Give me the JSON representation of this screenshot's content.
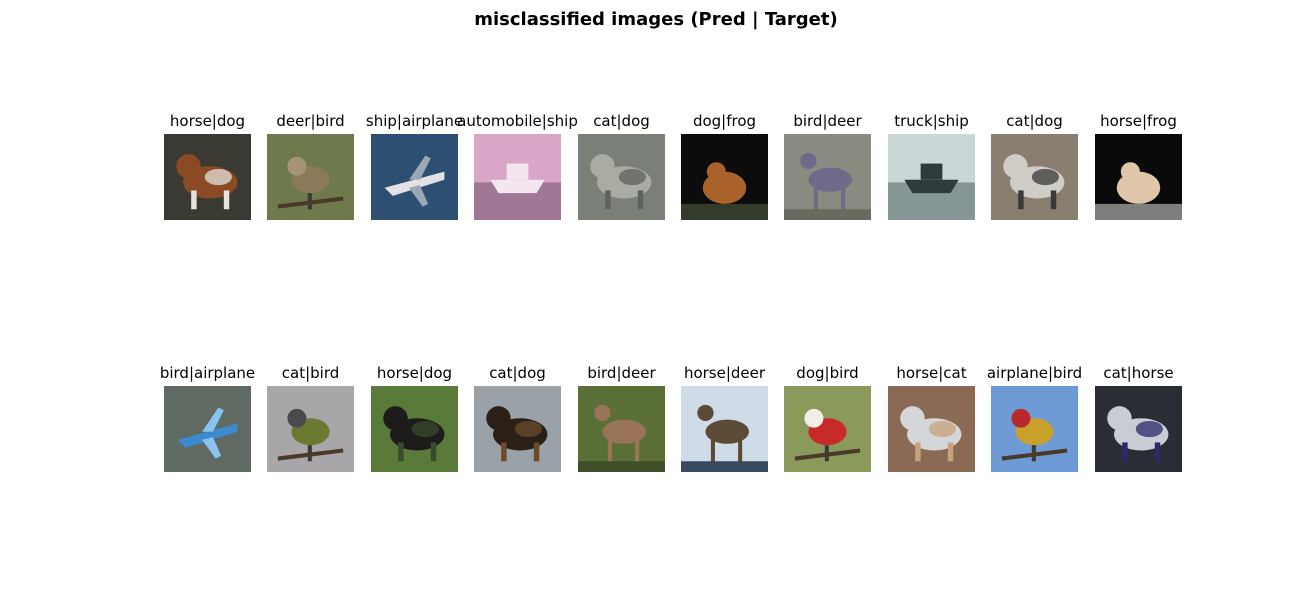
{
  "figure": {
    "title": "misclassified images (Pred | Target)"
  },
  "grid": {
    "rows": [
      {
        "items": [
          {
            "label": "horse|dog",
            "subject": "dog",
            "colors": {
              "bg": "#3a3a32",
              "a": "#8a4a24",
              "b": "#e6e2dc"
            }
          },
          {
            "label": "deer|bird",
            "subject": "bird",
            "colors": {
              "bg": "#6f7a4c",
              "a": "#8a7a5a",
              "b": "#a69478"
            }
          },
          {
            "label": "ship|airplane",
            "subject": "airplane",
            "colors": {
              "bg": "#2c4f72",
              "a": "#e2e2e2",
              "b": "#9aa7b4"
            }
          },
          {
            "label": "automobile|ship",
            "subject": "ship",
            "colors": {
              "bg": "#d8a6c6",
              "a": "#7c5a74",
              "b": "#f3e6f0"
            }
          },
          {
            "label": "cat|dog",
            "subject": "dog",
            "colors": {
              "bg": "#7a7f78",
              "a": "#a8aca2",
              "b": "#5e625a"
            }
          },
          {
            "label": "dog|frog",
            "subject": "frog",
            "colors": {
              "bg": "#0c0c0c",
              "a": "#a8622a",
              "b": "#5a6a4a"
            }
          },
          {
            "label": "bird|deer",
            "subject": "deer",
            "colors": {
              "bg": "#8a8a80",
              "a": "#6e6a8a",
              "b": "#6a6a5e"
            }
          },
          {
            "label": "truck|ship",
            "subject": "ship",
            "colors": {
              "bg": "#c9d8d6",
              "a": "#5a6a6c",
              "b": "#2e3a3c"
            }
          },
          {
            "label": "cat|dog",
            "subject": "dog",
            "colors": {
              "bg": "#8a7e70",
              "a": "#d0ccc6",
              "b": "#3a3a3a"
            }
          },
          {
            "label": "horse|frog",
            "subject": "frog",
            "colors": {
              "bg": "#0a0a0a",
              "a": "#e0c6a8",
              "b": "#f2f2ee"
            }
          }
        ]
      },
      {
        "items": [
          {
            "label": "bird|airplane",
            "subject": "airplane",
            "colors": {
              "bg": "#5e6a62",
              "a": "#3a8ad0",
              "b": "#8ac2f0"
            }
          },
          {
            "label": "cat|bird",
            "subject": "bird",
            "colors": {
              "bg": "#a8a6a8",
              "a": "#6a7a30",
              "b": "#4a4a4e"
            }
          },
          {
            "label": "horse|dog",
            "subject": "dog",
            "colors": {
              "bg": "#5a7a3a",
              "a": "#1e1c1a",
              "b": "#3a4a2c"
            }
          },
          {
            "label": "cat|dog",
            "subject": "dog",
            "colors": {
              "bg": "#9aa2a8",
              "a": "#2a2018",
              "b": "#6a4a2a"
            }
          },
          {
            "label": "bird|deer",
            "subject": "deer",
            "colors": {
              "bg": "#5a7036",
              "a": "#9a7458",
              "b": "#3e4e26"
            }
          },
          {
            "label": "horse|deer",
            "subject": "deer",
            "colors": {
              "bg": "#cfdbe6",
              "a": "#5a4a36",
              "b": "#3a4a5e"
            }
          },
          {
            "label": "dog|bird",
            "subject": "bird",
            "colors": {
              "bg": "#8a9a5a",
              "a": "#c82a2a",
              "b": "#f0eee6"
            }
          },
          {
            "label": "horse|cat",
            "subject": "cat",
            "colors": {
              "bg": "#8a6a54",
              "a": "#d4d6d8",
              "b": "#c8a27a"
            }
          },
          {
            "label": "airplane|bird",
            "subject": "bird",
            "colors": {
              "bg": "#6e9ad6",
              "a": "#c8a02a",
              "b": "#b82a2a"
            }
          },
          {
            "label": "cat|horse",
            "subject": "horse",
            "colors": {
              "bg": "#2a2e34",
              "a": "#c8ccd4",
              "b": "#2a2a6a"
            }
          }
        ]
      }
    ]
  }
}
